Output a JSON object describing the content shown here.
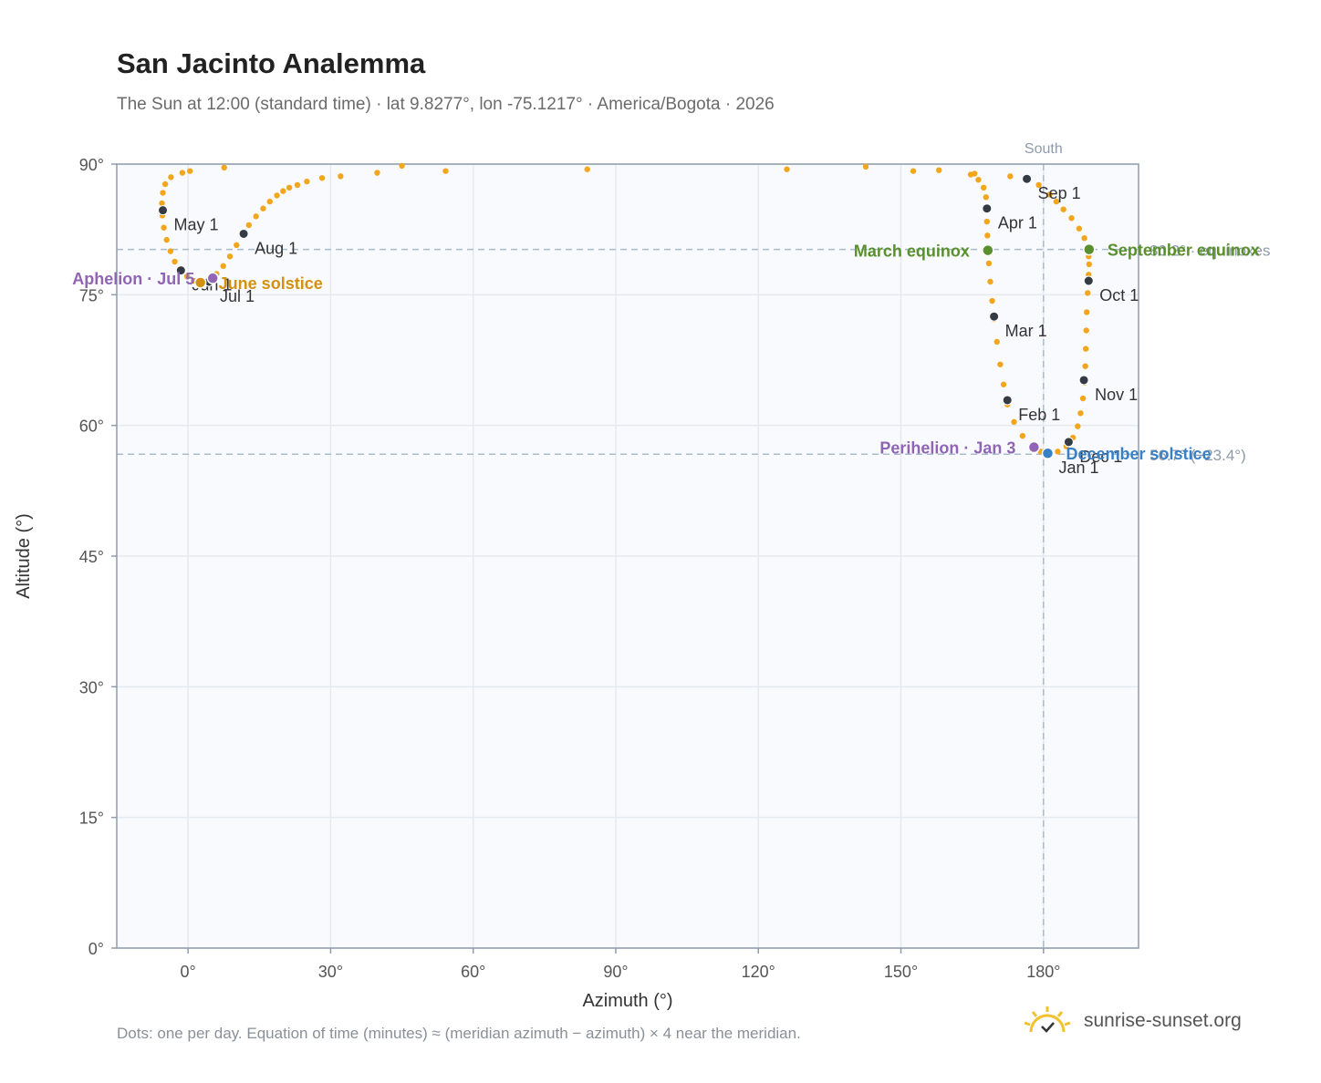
{
  "header": {
    "title": "San Jacinto Analemma",
    "subtitle": "The Sun at 12:00 (standard time) · lat 9.8277°, lon -75.1217° · America/Bogota · 2026"
  },
  "footer": {
    "note": "Dots: one per day. Equation of time (minutes) ≈ (meridian azimuth − azimuth) × 4 near the meridian.",
    "brand": "sunrise-sunset.org",
    "brand_icon": "sun-logo-icon"
  },
  "colors": {
    "track": "#f2a61d",
    "month_marker": "#353b45",
    "equinox": "#5a8f2e",
    "june_solstice": "#d4900f",
    "december_solstice": "#3a80c4",
    "apsis": "#9065b5",
    "plot_bg": "#f8fafd",
    "grid": "#e5e9f0",
    "frame": "#8f9bab",
    "reference": "#a9bccd"
  },
  "chart_data": {
    "type": "scatter",
    "title": "San Jacinto Analemma",
    "xlabel": "Azimuth (°)",
    "ylabel": "Altitude (°)",
    "xlim": [
      -15,
      200
    ],
    "ylim": [
      0,
      90
    ],
    "xticks": [
      0,
      30,
      60,
      90,
      120,
      150,
      180
    ],
    "yticks": [
      0,
      15,
      30,
      45,
      60,
      75,
      90
    ],
    "xtick_labels": [
      "0°",
      "30°",
      "60°",
      "90°",
      "120°",
      "150°",
      "180°"
    ],
    "ytick_labels": [
      "0°",
      "15°",
      "30°",
      "45°",
      "60°",
      "75°",
      "90°"
    ],
    "grid": true,
    "meridian": {
      "azimuth": 180,
      "label": "South"
    },
    "reference_lines": [
      {
        "altitude": 80.2,
        "label": "80.2° · equinoxes"
      },
      {
        "altitude": 56.7,
        "label": "56.7° (−23.4°)"
      }
    ],
    "series": [
      {
        "kind": "daily-track",
        "points": [
          [
            180.9,
            56.8
          ],
          [
            183.0,
            57.0
          ],
          [
            184.8,
            57.6
          ],
          [
            186.2,
            58.6
          ],
          [
            187.2,
            59.9
          ],
          [
            187.8,
            61.4
          ],
          [
            188.3,
            63.1
          ],
          [
            188.6,
            64.9
          ],
          [
            188.8,
            66.8
          ],
          [
            188.9,
            68.8
          ],
          [
            189.0,
            70.9
          ],
          [
            189.1,
            73.0
          ],
          [
            189.3,
            75.2
          ],
          [
            189.5,
            77.3
          ],
          [
            189.6,
            78.5
          ],
          [
            189.5,
            79.4
          ],
          [
            189.2,
            80.4
          ],
          [
            188.6,
            81.5
          ],
          [
            187.5,
            82.6
          ],
          [
            185.9,
            83.8
          ],
          [
            184.2,
            84.8
          ],
          [
            182.7,
            85.7
          ],
          [
            181.3,
            86.5
          ],
          [
            179.0,
            87.6
          ],
          [
            176.5,
            88.3
          ],
          [
            173.0,
            88.6
          ],
          [
            165.5,
            88.9
          ],
          [
            158.0,
            89.3
          ],
          [
            152.6,
            89.2
          ],
          [
            142.6,
            89.7
          ],
          [
            126.0,
            89.4
          ],
          [
            84.0,
            89.4
          ],
          [
            54.2,
            89.2
          ],
          [
            45.0,
            89.8
          ],
          [
            39.8,
            89.0
          ],
          [
            32.1,
            88.6
          ],
          [
            28.2,
            88.4
          ],
          [
            25.0,
            88.0
          ],
          [
            23.0,
            87.6
          ],
          [
            21.3,
            87.3
          ],
          [
            20.0,
            86.9
          ],
          [
            18.7,
            86.4
          ],
          [
            17.2,
            85.7
          ],
          [
            15.8,
            84.9
          ],
          [
            14.3,
            84.0
          ],
          [
            12.8,
            83.0
          ],
          [
            11.7,
            82.0
          ],
          [
            10.2,
            80.7
          ],
          [
            8.8,
            79.4
          ],
          [
            7.4,
            78.3
          ],
          [
            6.0,
            77.4
          ],
          [
            5.0,
            76.9
          ],
          [
            3.8,
            76.5
          ],
          [
            2.6,
            76.4
          ],
          [
            1.2,
            76.6
          ],
          [
            -0.2,
            77.1
          ],
          [
            -1.5,
            77.8
          ],
          [
            -2.8,
            78.8
          ],
          [
            -3.7,
            80.0
          ],
          [
            -4.5,
            81.3
          ],
          [
            -5.1,
            82.7
          ],
          [
            -5.4,
            84.1
          ],
          [
            -5.5,
            85.5
          ],
          [
            -5.3,
            86.7
          ],
          [
            -4.8,
            87.7
          ],
          [
            -3.6,
            88.5
          ],
          [
            -1.2,
            89.0
          ],
          [
            0.4,
            89.2
          ],
          [
            7.6,
            89.6
          ],
          [
            164.7,
            88.8
          ],
          [
            166.3,
            88.2
          ],
          [
            167.4,
            87.3
          ],
          [
            167.9,
            86.2
          ],
          [
            168.1,
            84.9
          ],
          [
            168.1,
            83.4
          ],
          [
            168.2,
            81.8
          ],
          [
            168.3,
            80.4
          ],
          [
            168.5,
            78.6
          ],
          [
            168.8,
            76.5
          ],
          [
            169.2,
            74.3
          ],
          [
            169.6,
            72.2
          ],
          [
            170.2,
            69.6
          ],
          [
            170.9,
            67.0
          ],
          [
            171.6,
            64.7
          ],
          [
            172.4,
            62.4
          ],
          [
            173.8,
            60.4
          ],
          [
            175.6,
            58.8
          ],
          [
            177.6,
            57.6
          ],
          [
            179.4,
            57.0
          ],
          [
            180.9,
            56.8
          ]
        ]
      }
    ],
    "month_markers": [
      {
        "label": "Jan 1",
        "azimuth": 180.9,
        "altitude": 56.8
      },
      {
        "label": "Feb 1",
        "azimuth": 172.4,
        "altitude": 62.9
      },
      {
        "label": "Mar 1",
        "azimuth": 169.6,
        "altitude": 72.5
      },
      {
        "label": "Apr 1",
        "azimuth": 168.1,
        "altitude": 84.9
      },
      {
        "label": "May 1",
        "azimuth": -5.3,
        "altitude": 84.7
      },
      {
        "label": "Jun 1",
        "azimuth": -1.5,
        "altitude": 77.8
      },
      {
        "label": "Jul 1",
        "azimuth": 4.4,
        "altitude": 76.5
      },
      {
        "label": "Aug 1",
        "azimuth": 11.7,
        "altitude": 82.0
      },
      {
        "label": "Sep 1",
        "azimuth": 176.5,
        "altitude": 88.3
      },
      {
        "label": "Oct 1",
        "azimuth": 189.5,
        "altitude": 76.6
      },
      {
        "label": "Nov 1",
        "azimuth": 188.5,
        "altitude": 65.2
      },
      {
        "label": "Dec 1",
        "azimuth": 185.3,
        "altitude": 58.1
      }
    ],
    "events": [
      {
        "label": "March equinox",
        "azimuth": 168.3,
        "altitude": 80.1,
        "color": "#5a8f2e",
        "label_side": "left"
      },
      {
        "label": "September equinox",
        "azimuth": 189.6,
        "altitude": 80.2,
        "color": "#5a8f2e",
        "label_side": "right"
      },
      {
        "label": "June solstice",
        "azimuth": 2.6,
        "altitude": 76.4,
        "color": "#d4900f",
        "label_side": "right"
      },
      {
        "label": "December solstice",
        "azimuth": 180.9,
        "altitude": 56.8,
        "color": "#3a80c4",
        "label_side": "right"
      },
      {
        "label": "Aphelion · Jul 5",
        "azimuth": 5.2,
        "altitude": 76.9,
        "color": "#9065b5",
        "label_side": "left"
      },
      {
        "label": "Perihelion · Jan 3",
        "azimuth": 178.0,
        "altitude": 57.5,
        "color": "#9065b5",
        "label_side": "left"
      }
    ]
  }
}
